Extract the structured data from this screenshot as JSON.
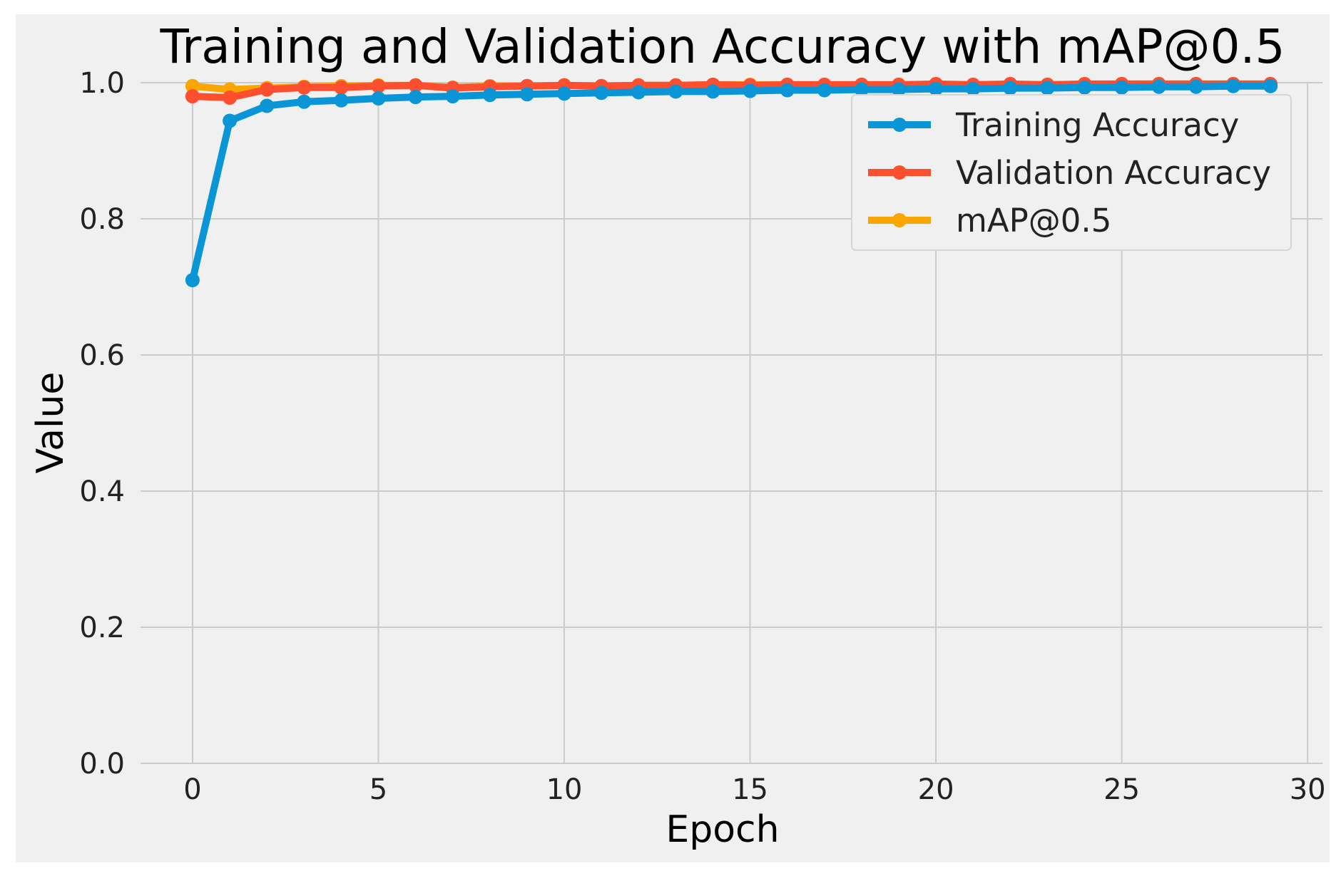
{
  "chart_data": {
    "type": "line",
    "title": "Training and Validation Accuracy with mAP@0.5",
    "xlabel": "Epoch",
    "ylabel": "Value",
    "xlim": [
      -1.4,
      30.4
    ],
    "ylim": [
      0.0,
      1.0
    ],
    "x_ticks": [
      "0",
      "5",
      "10",
      "15",
      "20",
      "25",
      "30"
    ],
    "y_ticks": [
      "0.0",
      "0.2",
      "0.4",
      "0.6",
      "0.8",
      "1.0"
    ],
    "grid": true,
    "legend_position": "top-right",
    "x": [
      0,
      1,
      2,
      3,
      4,
      5,
      6,
      7,
      8,
      9,
      10,
      11,
      12,
      13,
      14,
      15,
      16,
      17,
      18,
      19,
      20,
      21,
      22,
      23,
      24,
      25,
      26,
      27,
      28,
      29
    ],
    "series": [
      {
        "name": "Training Accuracy",
        "color": "#0a96d6",
        "values": [
          0.71,
          0.944,
          0.966,
          0.972,
          0.974,
          0.977,
          0.979,
          0.98,
          0.982,
          0.983,
          0.984,
          0.985,
          0.986,
          0.987,
          0.987,
          0.988,
          0.989,
          0.989,
          0.99,
          0.99,
          0.991,
          0.991,
          0.992,
          0.992,
          0.993,
          0.993,
          0.994,
          0.994,
          0.995,
          0.995
        ]
      },
      {
        "name": "Validation Accuracy",
        "color": "#fc4f30",
        "values": [
          0.98,
          0.978,
          0.99,
          0.993,
          0.993,
          0.995,
          0.996,
          0.992,
          0.994,
          0.995,
          0.996,
          0.995,
          0.996,
          0.996,
          0.997,
          0.996,
          0.997,
          0.997,
          0.997,
          0.997,
          0.998,
          0.997,
          0.998,
          0.997,
          0.998,
          0.998,
          0.998,
          0.998,
          0.998,
          0.998
        ]
      },
      {
        "name": "mAP@0.5",
        "color": "#f9a602",
        "values": [
          0.995,
          0.99,
          0.992,
          0.994,
          0.995,
          0.996,
          0.996,
          0.993,
          0.995,
          0.995,
          0.996,
          0.995,
          0.996,
          0.996,
          0.997,
          0.997,
          0.997,
          0.997,
          0.997,
          0.997,
          0.997,
          0.997,
          0.997,
          0.997,
          0.997,
          0.998,
          0.998,
          0.998,
          0.998,
          0.998
        ]
      }
    ]
  }
}
